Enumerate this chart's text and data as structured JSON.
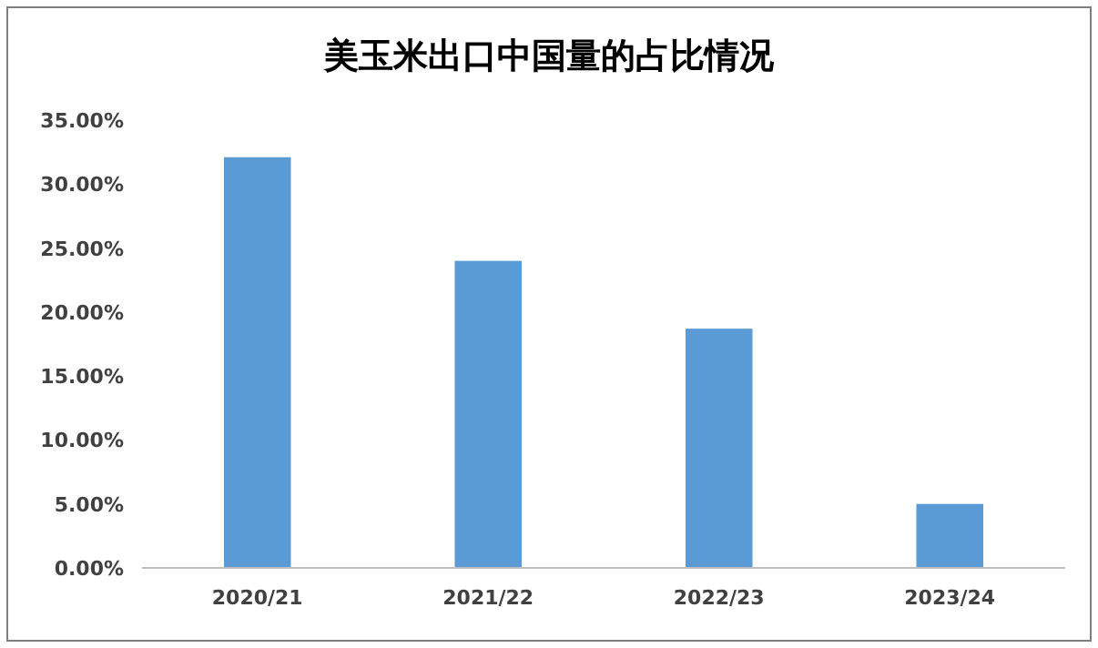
{
  "chart_data": {
    "type": "bar",
    "title": "美玉米出口中国量的占比情况",
    "categories": [
      "2020/21",
      "2021/22",
      "2022/23",
      "2023/24"
    ],
    "values": [
      32.1,
      24.0,
      18.7,
      5.0
    ],
    "color": "#5b9bd5",
    "ylim": [
      0,
      35
    ],
    "yticks": [
      {
        "value": 0,
        "label": "0.00%"
      },
      {
        "value": 5,
        "label": "5.00%"
      },
      {
        "value": 10,
        "label": "10.00%"
      },
      {
        "value": 15,
        "label": "15.00%"
      },
      {
        "value": 20,
        "label": "20.00%"
      },
      {
        "value": 25,
        "label": "25.00%"
      },
      {
        "value": 30,
        "label": "30.00%"
      },
      {
        "value": 35,
        "label": "35.00%"
      }
    ],
    "grid": false
  }
}
